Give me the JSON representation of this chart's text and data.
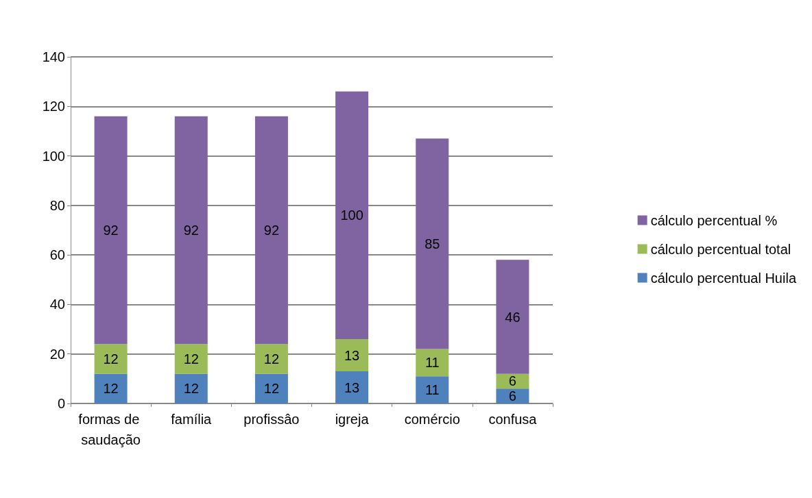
{
  "chart_data": {
    "type": "bar",
    "stacked": true,
    "categories": [
      "formas de saudação",
      "família",
      "profissâo",
      "igreja",
      "comércio",
      "confusa"
    ],
    "series": [
      {
        "name": "cálculo percentual Huila",
        "color": "#4f81bd",
        "values": [
          12,
          12,
          12,
          13,
          11,
          6
        ]
      },
      {
        "name": "cálculo percentual total",
        "color": "#9bbb59",
        "values": [
          12,
          12,
          12,
          13,
          11,
          6
        ]
      },
      {
        "name": "cálculo percentual %",
        "color": "#8064a2",
        "values": [
          92,
          92,
          92,
          100,
          85,
          46
        ]
      }
    ],
    "ylim": [
      0,
      140
    ],
    "yticks": [
      0,
      20,
      40,
      60,
      80,
      100,
      120,
      140
    ],
    "grid": "y",
    "legend": "right",
    "data_labels": true
  }
}
